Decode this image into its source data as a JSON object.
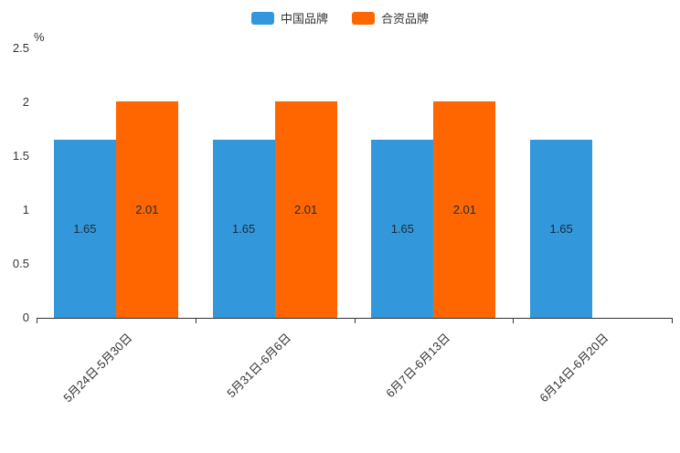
{
  "chart_data": {
    "type": "bar",
    "categories": [
      "5月24日-5月30日",
      "5月31日-6月6日",
      "6月7日-6月13日",
      "6月14日-6月20日"
    ],
    "series": [
      {
        "name": "中国品牌",
        "color": "#3398DB",
        "values": [
          1.65,
          1.65,
          1.65,
          1.65
        ]
      },
      {
        "name": "合资品牌",
        "color": "#FF6600",
        "values": [
          2.01,
          2.01,
          2.01,
          null
        ]
      }
    ],
    "title": "",
    "xlabel": "",
    "ylabel": "%",
    "ylim": [
      0,
      2.5
    ],
    "yticks": [
      0,
      0.5,
      1,
      1.5,
      2,
      2.5
    ],
    "legend_position": "top",
    "grid": false,
    "axis_color": "#333333",
    "bar_label_color": "#1c2b3a"
  }
}
